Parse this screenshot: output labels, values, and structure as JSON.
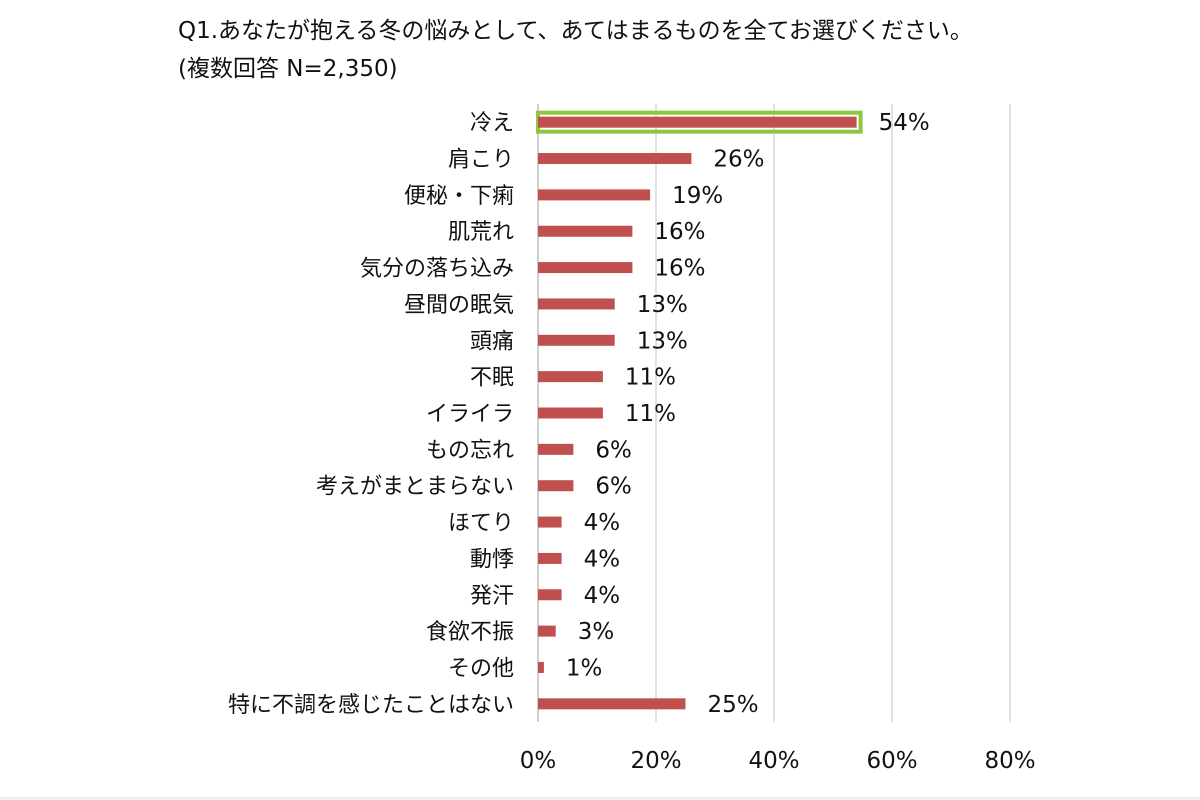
{
  "title_line1": "Q1.あなたが抱える冬の悩みとして、あてはまるものを全てお選びください。",
  "title_line2": "(複数回答 N=2,350)",
  "chart_data": {
    "type": "bar",
    "orientation": "horizontal",
    "categories": [
      "冷え",
      "肩こり",
      "便秘・下痢",
      "肌荒れ",
      "気分の落ち込み",
      "昼間の眠気",
      "頭痛",
      "不眠",
      "イライラ",
      "もの忘れ",
      "考えがまとまらない",
      "ほてり",
      "動悸",
      "発汗",
      "食欲不振",
      "その他",
      "特に不調を感じたことはない"
    ],
    "values": [
      54,
      26,
      19,
      16,
      16,
      13,
      13,
      11,
      11,
      6,
      6,
      4,
      4,
      4,
      3,
      1,
      25
    ],
    "value_labels": [
      "54%",
      "26%",
      "19%",
      "16%",
      "16%",
      "13%",
      "13%",
      "11%",
      "11%",
      "6%",
      "6%",
      "4%",
      "4%",
      "4%",
      "3%",
      "1%",
      "25%"
    ],
    "x_ticks": [
      0,
      20,
      40,
      60,
      80
    ],
    "x_tick_labels": [
      "0%",
      "20%",
      "40%",
      "60%",
      "80%"
    ],
    "xlim": [
      0,
      80
    ],
    "grid": true,
    "bar_color": "#c0504d",
    "highlight_index": 0,
    "highlight_color": "#8dc63f",
    "grid_color": "#d9d9d9"
  }
}
